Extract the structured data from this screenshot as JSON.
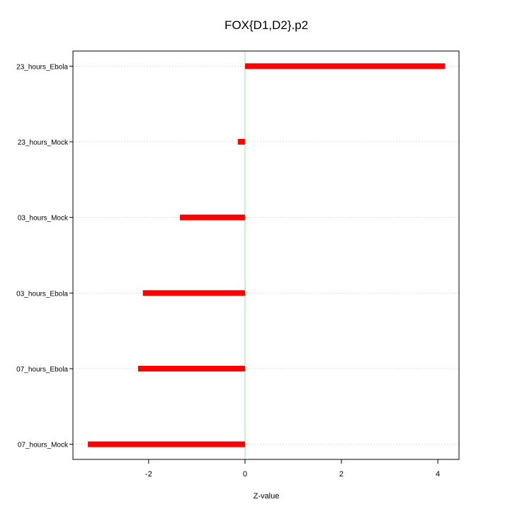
{
  "chart_data": {
    "type": "bar",
    "orientation": "horizontal",
    "title": "FOX{D1,D2}.p2",
    "xlabel": "Z-value",
    "ylabel": "",
    "categories": [
      "07_hours_Mock",
      "07_hours_Ebola",
      "03_hours_Ebola",
      "03_hours_Mock",
      "23_hours_Mock",
      "23_hours_Ebola"
    ],
    "values": [
      -3.26,
      -2.22,
      -2.12,
      -1.35,
      -0.15,
      4.15
    ],
    "xlim": [
      -3.57,
      4.44
    ],
    "xticks": [
      -2,
      0,
      2,
      4
    ],
    "reference_line": 0,
    "grid": "horizontal dotted",
    "colors": {
      "bar": "#ff0000",
      "reference_line": "#90ee90",
      "grid": "#d3d3d3"
    }
  }
}
